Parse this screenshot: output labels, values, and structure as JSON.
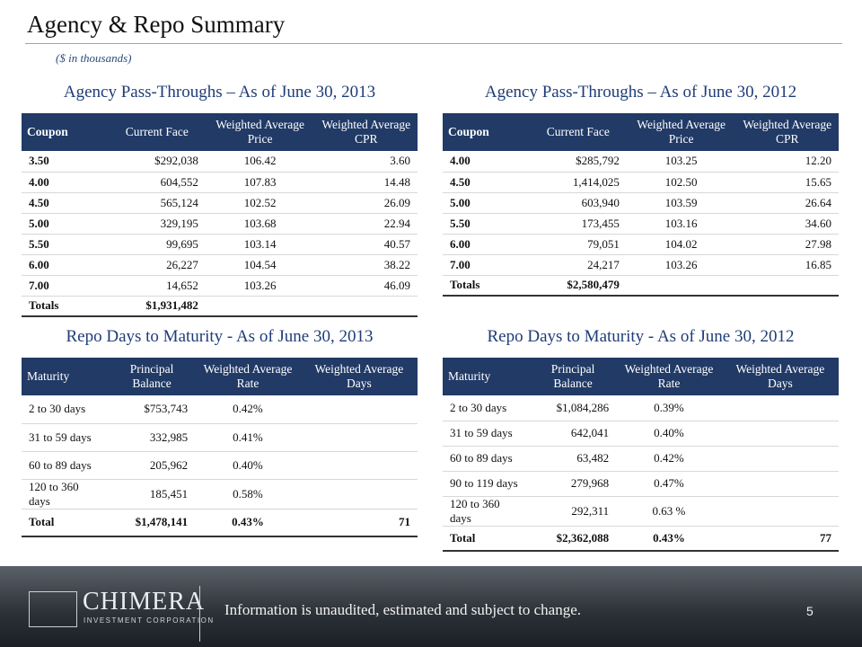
{
  "header": {
    "title": "Agency & Repo Summary",
    "subtitle": "($ in thousands)"
  },
  "tables": [
    {
      "title": "Agency Pass-Throughs – As of June 30, 2013",
      "columns": [
        "Coupon",
        "Current Face",
        "Weighted Average Price",
        "Weighted Average CPR"
      ],
      "rows": [
        [
          "3.50",
          "$292,038",
          "106.42",
          "3.60"
        ],
        [
          "4.00",
          "604,552",
          "107.83",
          "14.48"
        ],
        [
          "4.50",
          "565,124",
          "102.52",
          "26.09"
        ],
        [
          "5.00",
          "329,195",
          "103.68",
          "22.94"
        ],
        [
          "5.50",
          "99,695",
          "103.14",
          "40.57"
        ],
        [
          "6.00",
          "26,227",
          "104.54",
          "38.22"
        ],
        [
          "7.00",
          "14,652",
          "103.26",
          "46.09"
        ]
      ],
      "totals": [
        "Totals",
        "$1,931,482"
      ]
    },
    {
      "title": "Agency Pass-Throughs – As of June 30, 2012",
      "columns": [
        "Coupon",
        "Current Face",
        "Weighted Average Price",
        "Weighted Average CPR"
      ],
      "rows": [
        [
          "4.00",
          "$285,792",
          "103.25",
          "12.20"
        ],
        [
          "4.50",
          "1,414,025",
          "102.50",
          "15.65"
        ],
        [
          "5.00",
          "603,940",
          "103.59",
          "26.64"
        ],
        [
          "5.50",
          "173,455",
          "103.16",
          "34.60"
        ],
        [
          "6.00",
          "79,051",
          "104.02",
          "27.98"
        ],
        [
          "7.00",
          "24,217",
          "103.26",
          "16.85"
        ]
      ],
      "totals": [
        "Totals",
        "$2,580,479"
      ]
    },
    {
      "title": "Repo Days to Maturity - As of June 30, 2013",
      "columns": [
        "Maturity",
        "Principal Balance",
        "Weighted Average Rate",
        "Weighted Average Days"
      ],
      "rows": [
        [
          "2 to 30 days",
          "$753,743",
          "0.42%"
        ],
        [
          "31 to 59 days",
          "332,985",
          "0.41%"
        ],
        [
          "60 to 89 days",
          "205,962",
          "0.40%"
        ],
        [
          "120 to 360 days",
          "185,451",
          "0.58%"
        ]
      ],
      "totals": [
        "Total",
        "$1,478,141",
        "0.43%",
        "71"
      ]
    },
    {
      "title": "Repo Days to Maturity - As of June 30, 2012",
      "columns": [
        "Maturity",
        "Principal Balance",
        "Weighted Average Rate",
        "Weighted Average Days"
      ],
      "rows": [
        [
          "2 to 30 days",
          "$1,084,286",
          "0.39%"
        ],
        [
          "31 to 59 days",
          "642,041",
          "0.40%"
        ],
        [
          "60 to 89 days",
          "63,482",
          "0.42%"
        ],
        [
          "90 to 119 days",
          "279,968",
          "0.47%"
        ],
        [
          "120 to 360 days",
          "292,311",
          "0.63 %"
        ]
      ],
      "totals": [
        "Total",
        "$2,362,088",
        "0.43%",
        "77"
      ]
    }
  ],
  "footer": {
    "company": "CHIMERA",
    "company_sub": "INVESTMENT CORPORATION",
    "disclaimer": "Information is unaudited, estimated and subject to change.",
    "page": "5"
  }
}
